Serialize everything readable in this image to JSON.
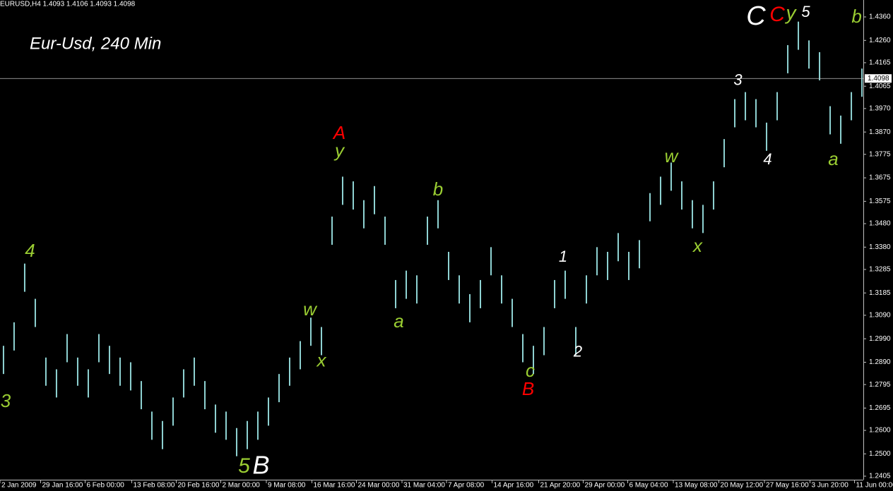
{
  "chart_data": {
    "type": "ohlc",
    "header": "EURUSD,H4  1.4093 1.4106 1.4093 1.4098",
    "title": "Eur-Usd, 240 Min",
    "color": "#8fd3d3",
    "high": [
      1.296,
      1.306,
      1.331,
      1.316,
      1.291,
      1.286,
      1.301,
      1.291,
      1.286,
      1.301,
      1.296,
      1.291,
      1.289,
      1.281,
      1.268,
      1.264,
      1.274,
      1.286,
      1.291,
      1.281,
      1.271,
      1.268,
      1.261,
      1.264,
      1.268,
      1.274,
      1.284,
      1.291,
      1.298,
      1.308,
      1.304,
      1.351,
      1.368,
      1.366,
      1.358,
      1.364,
      1.351,
      1.324,
      1.328,
      1.326,
      1.351,
      1.358,
      1.336,
      1.326,
      1.318,
      1.324,
      1.338,
      1.326,
      1.316,
      1.301,
      1.296,
      1.304,
      1.324,
      1.328,
      1.304,
      1.326,
      1.338,
      1.336,
      1.344,
      1.336,
      1.341,
      1.361,
      1.368,
      1.374,
      1.366,
      1.358,
      1.356,
      1.366,
      1.384,
      1.401,
      1.404,
      1.401,
      1.391,
      1.404,
      1.424,
      1.434,
      1.426,
      1.421,
      1.398,
      1.394,
      1.404,
      1.414
    ],
    "low": [
      1.284,
      1.294,
      1.319,
      1.304,
      1.279,
      1.274,
      1.289,
      1.279,
      1.274,
      1.289,
      1.284,
      1.279,
      1.277,
      1.269,
      1.256,
      1.252,
      1.262,
      1.274,
      1.279,
      1.269,
      1.259,
      1.256,
      1.249,
      1.252,
      1.256,
      1.262,
      1.272,
      1.279,
      1.286,
      1.296,
      1.292,
      1.339,
      1.356,
      1.354,
      1.346,
      1.352,
      1.339,
      1.312,
      1.316,
      1.314,
      1.339,
      1.346,
      1.324,
      1.314,
      1.306,
      1.312,
      1.326,
      1.314,
      1.304,
      1.289,
      1.284,
      1.292,
      1.312,
      1.316,
      1.292,
      1.314,
      1.326,
      1.324,
      1.332,
      1.324,
      1.329,
      1.349,
      1.356,
      1.362,
      1.354,
      1.346,
      1.344,
      1.354,
      1.372,
      1.389,
      1.392,
      1.389,
      1.379,
      1.392,
      1.412,
      1.422,
      1.414,
      1.409,
      1.386,
      1.382,
      1.392,
      1.402
    ],
    "xlim": [
      -0.33,
      81.13
    ],
    "xticks": [
      {
        "value": -0.33,
        "label": "2 Jan 2009"
      },
      {
        "value": 3.5,
        "label": "29 Jan 16:00"
      },
      {
        "value": 7.7,
        "label": "6 Feb 00:00"
      },
      {
        "value": 12.1,
        "label": "13 Feb 08:00"
      },
      {
        "value": 16.3,
        "label": "20 Feb 16:00"
      },
      {
        "value": 20.5,
        "label": "2 Mar 00:00"
      },
      {
        "value": 24.8,
        "label": "9 Mar 08:00"
      },
      {
        "value": 29.1,
        "label": "16 Mar 16:00"
      },
      {
        "value": 33.3,
        "label": "24 Mar 00:00"
      },
      {
        "value": 37.6,
        "label": "31 Mar 04:00"
      },
      {
        "value": 41.8,
        "label": "7 Apr 08:00"
      },
      {
        "value": 46.1,
        "label": "14 Apr 16:00"
      },
      {
        "value": 50.5,
        "label": "21 Apr 20:00"
      },
      {
        "value": 54.7,
        "label": "29 Apr 00:00"
      },
      {
        "value": 58.9,
        "label": "6 May 04:00"
      },
      {
        "value": 63.2,
        "label": "13 May 08:00"
      },
      {
        "value": 67.5,
        "label": "20 May 12:00"
      },
      {
        "value": 71.8,
        "label": "27 May 16:00"
      },
      {
        "value": 76.1,
        "label": "3 Jun 20:00"
      },
      {
        "value": 80.3,
        "label": "11 Jun 00:00"
      }
    ],
    "ylim": [
      1.239,
      1.4432
    ],
    "yticks": [
      {
        "value": 1.436,
        "label": "1.4360"
      },
      {
        "value": 1.426,
        "label": "1.4260"
      },
      {
        "value": 1.4165,
        "label": "1.4165"
      },
      {
        "value": 1.4065,
        "label": "1.4065"
      },
      {
        "value": 1.397,
        "label": "1.3970"
      },
      {
        "value": 1.387,
        "label": "1.3870"
      },
      {
        "value": 1.3775,
        "label": "1.3775"
      },
      {
        "value": 1.3675,
        "label": "1.3675"
      },
      {
        "value": 1.3575,
        "label": "1.3575"
      },
      {
        "value": 1.348,
        "label": "1.3480"
      },
      {
        "value": 1.338,
        "label": "1.3380"
      },
      {
        "value": 1.3285,
        "label": "1.3285"
      },
      {
        "value": 1.3185,
        "label": "1.3185"
      },
      {
        "value": 1.309,
        "label": "1.3090"
      },
      {
        "value": 1.299,
        "label": "1.2990"
      },
      {
        "value": 1.289,
        "label": "1.2890"
      },
      {
        "value": 1.2795,
        "label": "1.2795"
      },
      {
        "value": 1.2695,
        "label": "1.2695"
      },
      {
        "value": 1.26,
        "label": "1.2600"
      },
      {
        "value": 1.25,
        "label": "1.2500"
      },
      {
        "value": 1.2405,
        "label": "1.2405"
      }
    ],
    "current_price": {
      "value": 1.4098,
      "label": "1.4098"
    },
    "annotations": [
      {
        "text": "3",
        "x": 0.2,
        "y": 1.272,
        "color": "#9acd32",
        "size": 26
      },
      {
        "text": "4",
        "x": 2.5,
        "y": 1.336,
        "color": "#9acd32",
        "size": 26
      },
      {
        "text": "5",
        "x": 22.7,
        "y": 1.2444,
        "color": "#9acd32",
        "size": 30
      },
      {
        "text": "B",
        "x": 24.3,
        "y": 1.2444,
        "color": "#ffffff",
        "size": 36
      },
      {
        "text": "w",
        "x": 28.9,
        "y": 1.3111,
        "color": "#9acd32",
        "size": 26
      },
      {
        "text": "x",
        "x": 30.0,
        "y": 1.2892,
        "color": "#9acd32",
        "size": 26
      },
      {
        "text": "A",
        "x": 31.7,
        "y": 1.3861,
        "color": "#ff0000",
        "size": 26
      },
      {
        "text": "y",
        "x": 31.7,
        "y": 1.3786,
        "color": "#9acd32",
        "size": 26
      },
      {
        "text": "a",
        "x": 37.3,
        "y": 1.306,
        "color": "#9acd32",
        "size": 26
      },
      {
        "text": "b",
        "x": 41.0,
        "y": 1.3621,
        "color": "#9acd32",
        "size": 26
      },
      {
        "text": "c",
        "x": 49.7,
        "y": 1.2849,
        "color": "#9acd32",
        "size": 26
      },
      {
        "text": "B",
        "x": 49.5,
        "y": 1.2771,
        "color": "#ff0000",
        "size": 26
      },
      {
        "text": "1",
        "x": 52.8,
        "y": 1.3336,
        "color": "#ffffff",
        "size": 22
      },
      {
        "text": "2",
        "x": 54.2,
        "y": 1.2931,
        "color": "#ffffff",
        "size": 22
      },
      {
        "text": "w",
        "x": 63.0,
        "y": 1.3762,
        "color": "#9acd32",
        "size": 26
      },
      {
        "text": "x",
        "x": 65.5,
        "y": 1.3381,
        "color": "#9acd32",
        "size": 26
      },
      {
        "text": "3",
        "x": 69.3,
        "y": 1.4087,
        "color": "#ffffff",
        "size": 22
      },
      {
        "text": "4",
        "x": 72.1,
        "y": 1.375,
        "color": "#ffffff",
        "size": 22
      },
      {
        "text": "C",
        "x": 71.0,
        "y": 1.4357,
        "color": "#ffffff",
        "size": 38
      },
      {
        "text": "C",
        "x": 73.0,
        "y": 1.4366,
        "color": "#ff0000",
        "size": 30
      },
      {
        "text": "y",
        "x": 74.3,
        "y": 1.4372,
        "color": "#9acd32",
        "size": 28
      },
      {
        "text": "5",
        "x": 75.7,
        "y": 1.4378,
        "color": "#ffffff",
        "size": 22
      },
      {
        "text": "a",
        "x": 78.3,
        "y": 1.375,
        "color": "#9acd32",
        "size": 26
      },
      {
        "text": "b",
        "x": 80.5,
        "y": 1.4357,
        "color": "#9acd32",
        "size": 26
      }
    ]
  }
}
